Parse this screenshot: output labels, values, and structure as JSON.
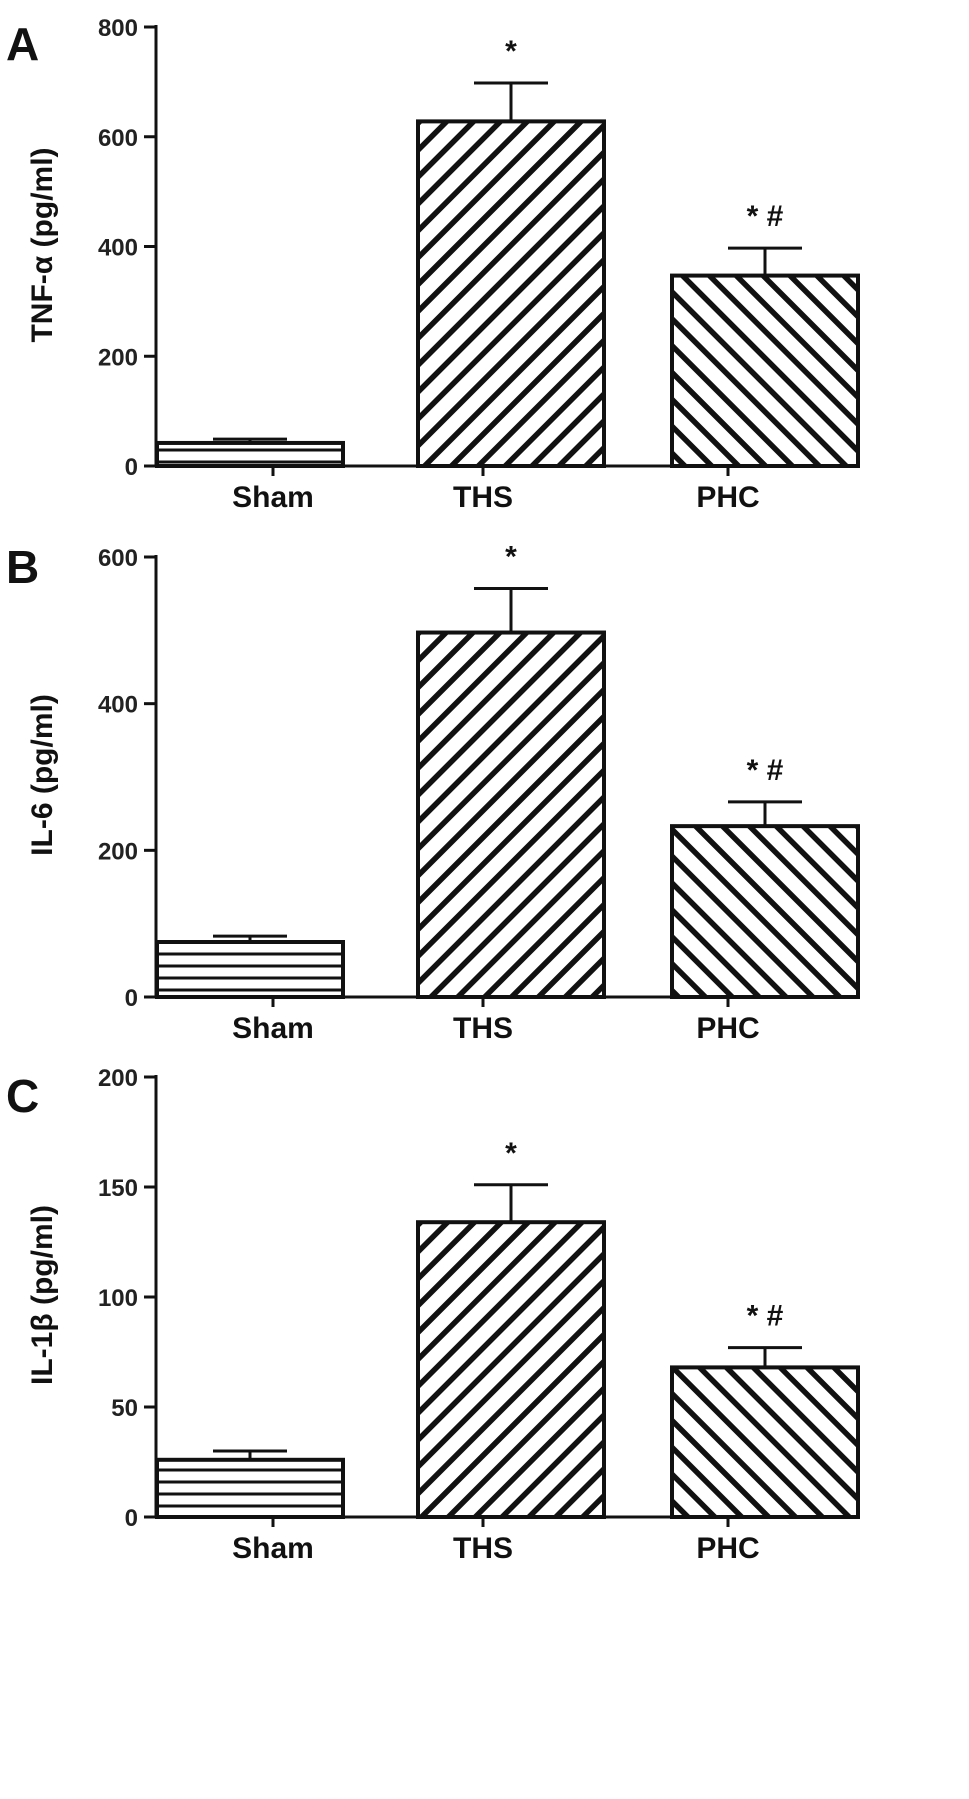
{
  "chart_data": [
    {
      "type": "bar",
      "panel": "A",
      "categories": [
        "Sham",
        "THS",
        "PHC"
      ],
      "values": [
        42,
        628,
        347
      ],
      "errors": [
        7,
        70,
        50
      ],
      "annotations": [
        "",
        "*",
        "* #"
      ],
      "ylabel": "TNF-α (pg/ml)",
      "ylim": [
        0,
        800
      ],
      "yticks": [
        0,
        200,
        400,
        600,
        800
      ],
      "patterns": [
        "horizontal",
        "diagonal-right",
        "diagonal-left"
      ]
    },
    {
      "type": "bar",
      "panel": "B",
      "categories": [
        "Sham",
        "THS",
        "PHC"
      ],
      "values": [
        75,
        497,
        233
      ],
      "errors": [
        8,
        60,
        33
      ],
      "annotations": [
        "",
        "*",
        "* #"
      ],
      "ylabel": "IL-6 (pg/ml)",
      "ylim": [
        0,
        600
      ],
      "yticks": [
        0,
        200,
        400,
        600
      ],
      "patterns": [
        "horizontal",
        "diagonal-right",
        "diagonal-left"
      ]
    },
    {
      "type": "bar",
      "panel": "C",
      "categories": [
        "Sham",
        "THS",
        "PHC"
      ],
      "values": [
        26,
        134,
        68
      ],
      "errors": [
        4,
        17,
        9
      ],
      "annotations": [
        "",
        "*",
        "* #"
      ],
      "ylabel": "IL-1β (pg/ml)",
      "ylim": [
        0,
        200
      ],
      "yticks": [
        0,
        50,
        100,
        150,
        200
      ],
      "patterns": [
        "horizontal",
        "diagonal-right",
        "diagonal-left"
      ]
    }
  ]
}
